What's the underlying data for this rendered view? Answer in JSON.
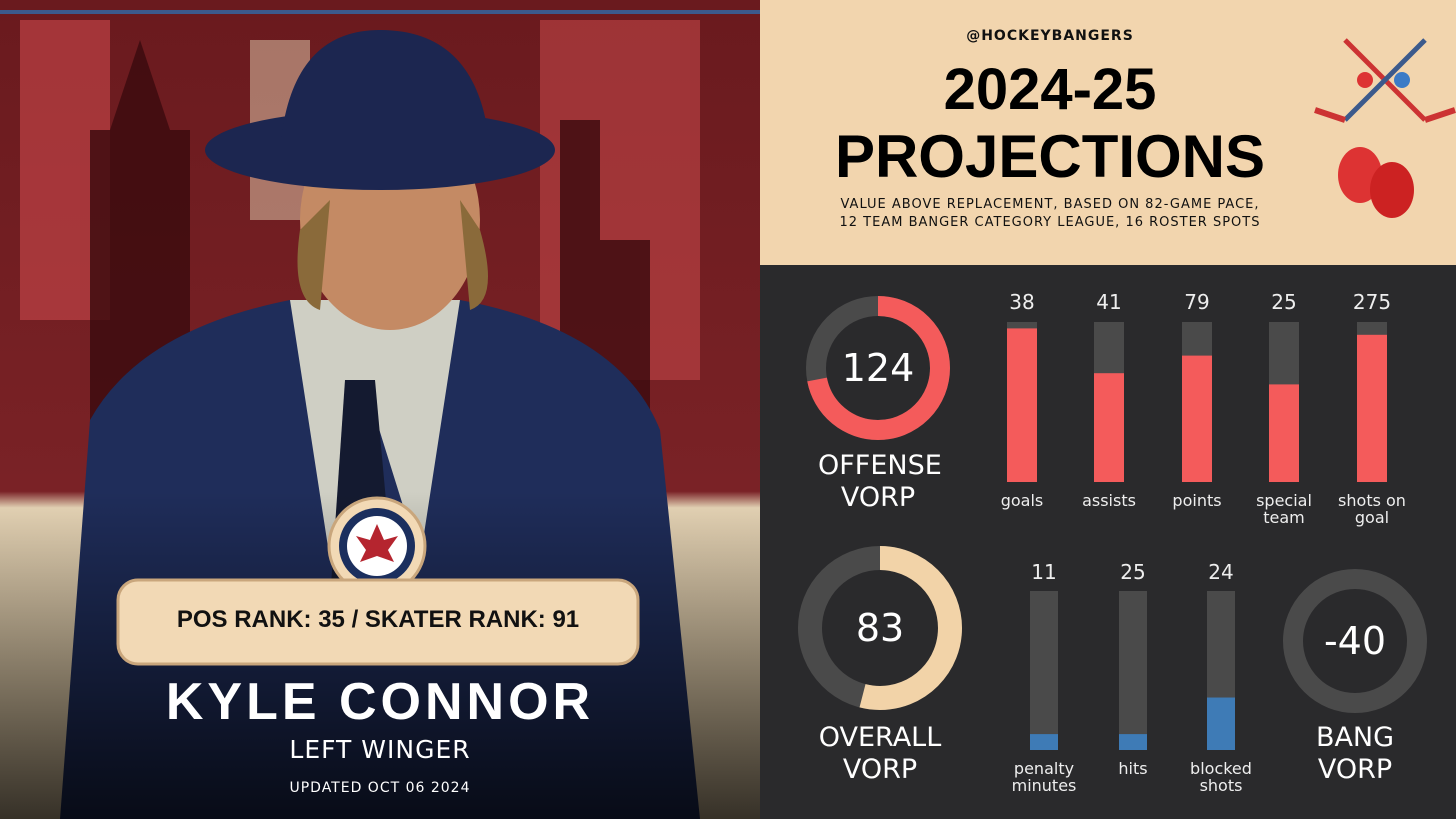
{
  "header": {
    "handle": "@HOCKEYBANGERS",
    "title_line1": "2024-25",
    "title_line2": "PROJECTIONS",
    "subtitle_lines": [
      "VALUE ABOVE REPLACEMENT, BASED ON 82-GAME PACE,",
      "12 TEAM BANGER CATEGORY LEAGUE, 16 ROSTER SPOTS"
    ]
  },
  "player": {
    "rank": "POS RANK: 35 / SKATER RANK: 91",
    "name": "KYLE CONNOR",
    "position": "LEFT WINGER",
    "updated": "UPDATED OCT 06 2024"
  },
  "offense": {
    "value": 124,
    "percent": 72,
    "label": "OFFENSE VORP",
    "color": "#f45b5b",
    "stats": [
      {
        "value": 38,
        "percent": 96,
        "label": "goals"
      },
      {
        "value": 41,
        "percent": 68,
        "label": "assists"
      },
      {
        "value": 79,
        "percent": 79,
        "label": "points"
      },
      {
        "value": 25,
        "percent": 61,
        "label": "special team"
      },
      {
        "value": 275,
        "percent": 92,
        "label": "shots on goal"
      }
    ]
  },
  "overall": {
    "value": 83,
    "percent": 54,
    "label": "OVERALL VORP",
    "color": "#f2d3a8"
  },
  "bang": {
    "value": -40,
    "percent": 0,
    "label": "BANG VORP",
    "color": "#e8e8e8",
    "bar_color": "#3e7bb6",
    "stats": [
      {
        "value": 11,
        "percent": 10,
        "label": "penalty minutes"
      },
      {
        "value": 25,
        "percent": 10,
        "label": "hits"
      },
      {
        "value": 24,
        "percent": 33,
        "label": "blocked shots"
      }
    ]
  }
}
